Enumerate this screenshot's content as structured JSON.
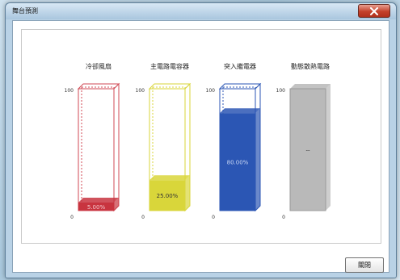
{
  "window": {
    "title": "舞台預測"
  },
  "gauges": [
    {
      "label": "冷卻風扇",
      "value_text": "5.00%",
      "level": 0.05,
      "max": "100",
      "min": "0",
      "fill": "#c8343f",
      "outline": "#d04a55",
      "value_color": "#f3c6cb"
    },
    {
      "label": "主電路電容器",
      "value_text": "25.00%",
      "level": 0.25,
      "max": "100",
      "min": "0",
      "fill": "#d9d63a",
      "outline": "#d9d63a",
      "value_color": "#333333"
    },
    {
      "label": "突入繼電器",
      "value_text": "80.00%",
      "level": 0.8,
      "max": "100",
      "min": "0",
      "fill": "#2b56b4",
      "outline": "#2b56b4",
      "value_color": "#c8d6f4"
    },
    {
      "label": "動態散熱電路",
      "value_text": "--",
      "level": 1.0,
      "max": "100",
      "min": "0",
      "fill": "#b9b9b9",
      "outline": "#9a9a9a",
      "value_color": "#333333"
    }
  ],
  "buttons": {
    "close_label": "關閉"
  },
  "colors": {
    "titlebar_close": "#c4412b"
  }
}
